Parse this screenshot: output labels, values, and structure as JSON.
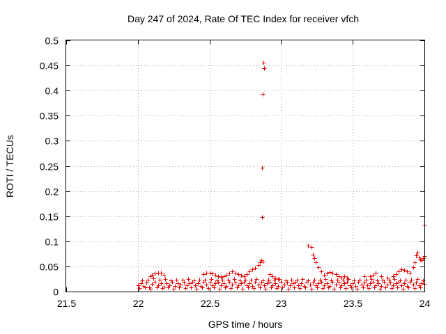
{
  "chart_data": {
    "type": "scatter",
    "title": "Day 247 of 2024, Rate Of TEC Index for receiver vfch",
    "xlabel": "GPS time / hours",
    "ylabel": "ROTI / TECUs",
    "xlim": [
      21.5,
      24
    ],
    "ylim": [
      0,
      0.5
    ],
    "grid": true,
    "xticks": [
      21.5,
      22,
      22.5,
      23,
      23.5,
      24
    ],
    "xtick_labels": [
      "21.5",
      "22",
      "22.5",
      "23",
      "23.5",
      "24"
    ],
    "yticks": [
      0,
      0.05,
      0.1,
      0.15,
      0.2,
      0.25,
      0.3,
      0.35,
      0.4,
      0.45,
      0.5
    ],
    "ytick_labels": [
      "0",
      "0.05",
      "0.1",
      "0.15",
      "0.2",
      "0.25",
      "0.3",
      "0.35",
      "0.4",
      "0.45",
      "0.5"
    ],
    "marker_color": "#e00000",
    "series": [
      {
        "name": "ROTI",
        "marker": "+",
        "points": [
          [
            22.0,
            0.013
          ],
          [
            22.02,
            0.016
          ],
          [
            22.04,
            0.011
          ],
          [
            22.06,
            0.018
          ],
          [
            22.08,
            0.009
          ],
          [
            22.1,
            0.015
          ],
          [
            22.12,
            0.02
          ],
          [
            22.14,
            0.012
          ],
          [
            22.16,
            0.017
          ],
          [
            22.18,
            0.01
          ],
          [
            22.2,
            0.016
          ],
          [
            22.22,
            0.013
          ],
          [
            22.24,
            0.019
          ],
          [
            22.26,
            0.011
          ],
          [
            22.28,
            0.017
          ],
          [
            22.3,
            0.014
          ],
          [
            22.32,
            0.018
          ],
          [
            22.34,
            0.012
          ],
          [
            22.36,
            0.016
          ],
          [
            22.38,
            0.02
          ],
          [
            22.4,
            0.013
          ],
          [
            22.42,
            0.017
          ],
          [
            22.44,
            0.011
          ],
          [
            22.46,
            0.019
          ],
          [
            22.48,
            0.014
          ],
          [
            22.5,
            0.018
          ],
          [
            22.52,
            0.012
          ],
          [
            22.54,
            0.016
          ],
          [
            22.56,
            0.02
          ],
          [
            22.58,
            0.013
          ],
          [
            22.6,
            0.017
          ],
          [
            22.62,
            0.011
          ],
          [
            22.64,
            0.019
          ],
          [
            22.66,
            0.014
          ],
          [
            22.68,
            0.018
          ],
          [
            22.7,
            0.012
          ],
          [
            22.72,
            0.016
          ],
          [
            22.74,
            0.02
          ],
          [
            22.76,
            0.013
          ],
          [
            22.78,
            0.017
          ],
          [
            22.8,
            0.011
          ],
          [
            22.82,
            0.019
          ],
          [
            22.84,
            0.014
          ],
          [
            22.86,
            0.018
          ],
          [
            22.88,
            0.012
          ],
          [
            22.9,
            0.016
          ],
          [
            22.92,
            0.02
          ],
          [
            22.94,
            0.013
          ],
          [
            22.96,
            0.017
          ],
          [
            22.98,
            0.011
          ],
          [
            23.0,
            0.019
          ],
          [
            23.02,
            0.014
          ],
          [
            23.04,
            0.018
          ],
          [
            23.06,
            0.012
          ],
          [
            23.08,
            0.016
          ],
          [
            23.1,
            0.02
          ],
          [
            23.12,
            0.013
          ],
          [
            23.14,
            0.017
          ],
          [
            23.16,
            0.011
          ],
          [
            23.18,
            0.019
          ],
          [
            23.2,
            0.014
          ],
          [
            23.22,
            0.018
          ],
          [
            23.24,
            0.012
          ],
          [
            23.26,
            0.016
          ],
          [
            23.28,
            0.02
          ],
          [
            23.3,
            0.013
          ],
          [
            23.32,
            0.017
          ],
          [
            23.34,
            0.011
          ],
          [
            23.36,
            0.019
          ],
          [
            23.38,
            0.014
          ],
          [
            23.4,
            0.018
          ],
          [
            23.42,
            0.012
          ],
          [
            23.44,
            0.016
          ],
          [
            23.46,
            0.02
          ],
          [
            23.48,
            0.013
          ],
          [
            23.5,
            0.017
          ],
          [
            23.52,
            0.011
          ],
          [
            23.54,
            0.019
          ],
          [
            23.56,
            0.014
          ],
          [
            23.58,
            0.018
          ],
          [
            23.6,
            0.012
          ],
          [
            23.62,
            0.016
          ],
          [
            23.64,
            0.02
          ],
          [
            23.66,
            0.013
          ],
          [
            23.68,
            0.017
          ],
          [
            23.7,
            0.011
          ],
          [
            23.72,
            0.019
          ],
          [
            23.74,
            0.014
          ],
          [
            23.76,
            0.018
          ],
          [
            23.78,
            0.012
          ],
          [
            23.8,
            0.016
          ],
          [
            23.82,
            0.02
          ],
          [
            23.84,
            0.013
          ],
          [
            23.86,
            0.017
          ],
          [
            23.88,
            0.011
          ],
          [
            23.9,
            0.019
          ],
          [
            23.92,
            0.014
          ],
          [
            23.94,
            0.018
          ],
          [
            23.96,
            0.012
          ],
          [
            23.98,
            0.016
          ],
          [
            24.0,
            0.015
          ],
          [
            22.01,
            0.007
          ],
          [
            22.05,
            0.009
          ],
          [
            22.09,
            0.006
          ],
          [
            22.13,
            0.008
          ],
          [
            22.17,
            0.007
          ],
          [
            22.21,
            0.009
          ],
          [
            22.25,
            0.006
          ],
          [
            22.29,
            0.008
          ],
          [
            22.33,
            0.007
          ],
          [
            22.37,
            0.009
          ],
          [
            22.41,
            0.006
          ],
          [
            22.45,
            0.008
          ],
          [
            22.49,
            0.007
          ],
          [
            22.53,
            0.009
          ],
          [
            22.57,
            0.006
          ],
          [
            22.61,
            0.008
          ],
          [
            22.65,
            0.007
          ],
          [
            22.69,
            0.009
          ],
          [
            22.73,
            0.006
          ],
          [
            22.77,
            0.008
          ],
          [
            22.81,
            0.007
          ],
          [
            22.85,
            0.009
          ],
          [
            22.89,
            0.006
          ],
          [
            22.93,
            0.008
          ],
          [
            22.97,
            0.007
          ],
          [
            23.01,
            0.009
          ],
          [
            23.05,
            0.006
          ],
          [
            23.09,
            0.008
          ],
          [
            23.13,
            0.007
          ],
          [
            23.17,
            0.009
          ],
          [
            23.21,
            0.006
          ],
          [
            23.25,
            0.008
          ],
          [
            23.29,
            0.007
          ],
          [
            23.33,
            0.009
          ],
          [
            23.37,
            0.006
          ],
          [
            23.41,
            0.008
          ],
          [
            23.45,
            0.007
          ],
          [
            23.49,
            0.009
          ],
          [
            23.53,
            0.006
          ],
          [
            23.57,
            0.008
          ],
          [
            23.61,
            0.007
          ],
          [
            23.65,
            0.009
          ],
          [
            23.69,
            0.006
          ],
          [
            23.73,
            0.008
          ],
          [
            23.77,
            0.007
          ],
          [
            23.81,
            0.009
          ],
          [
            23.85,
            0.006
          ],
          [
            23.89,
            0.008
          ],
          [
            23.93,
            0.007
          ],
          [
            23.97,
            0.009
          ],
          [
            22.03,
            0.022
          ],
          [
            22.07,
            0.024
          ],
          [
            22.11,
            0.026
          ],
          [
            22.15,
            0.023
          ],
          [
            22.19,
            0.025
          ],
          [
            22.23,
            0.022
          ],
          [
            22.27,
            0.024
          ],
          [
            22.31,
            0.023
          ],
          [
            22.35,
            0.025
          ],
          [
            22.39,
            0.022
          ],
          [
            22.43,
            0.024
          ],
          [
            22.47,
            0.023
          ],
          [
            22.51,
            0.025
          ],
          [
            22.55,
            0.022
          ],
          [
            22.59,
            0.024
          ],
          [
            22.63,
            0.023
          ],
          [
            22.67,
            0.025
          ],
          [
            22.71,
            0.022
          ],
          [
            22.75,
            0.024
          ],
          [
            22.79,
            0.023
          ],
          [
            22.83,
            0.025
          ],
          [
            22.87,
            0.022
          ],
          [
            22.91,
            0.024
          ],
          [
            22.95,
            0.023
          ],
          [
            22.99,
            0.025
          ],
          [
            23.03,
            0.022
          ],
          [
            23.07,
            0.024
          ],
          [
            23.11,
            0.023
          ],
          [
            23.15,
            0.025
          ],
          [
            23.19,
            0.022
          ],
          [
            23.23,
            0.024
          ],
          [
            23.27,
            0.023
          ],
          [
            23.31,
            0.025
          ],
          [
            23.35,
            0.022
          ],
          [
            23.39,
            0.024
          ],
          [
            23.43,
            0.023
          ],
          [
            23.47,
            0.025
          ],
          [
            23.51,
            0.022
          ],
          [
            23.55,
            0.024
          ],
          [
            23.59,
            0.023
          ],
          [
            23.63,
            0.025
          ],
          [
            23.67,
            0.022
          ],
          [
            23.71,
            0.024
          ],
          [
            23.75,
            0.023
          ],
          [
            23.79,
            0.025
          ],
          [
            23.83,
            0.022
          ],
          [
            23.87,
            0.024
          ],
          [
            23.91,
            0.023
          ],
          [
            23.95,
            0.025
          ],
          [
            23.99,
            0.022
          ],
          [
            22.09,
            0.03
          ],
          [
            22.1,
            0.033
          ],
          [
            22.12,
            0.036
          ],
          [
            22.14,
            0.038
          ],
          [
            22.16,
            0.037
          ],
          [
            22.18,
            0.033
          ],
          [
            22.46,
            0.035
          ],
          [
            22.48,
            0.038
          ],
          [
            22.5,
            0.037
          ],
          [
            22.52,
            0.036
          ],
          [
            22.54,
            0.033
          ],
          [
            22.56,
            0.031
          ],
          [
            22.58,
            0.029
          ],
          [
            22.6,
            0.031
          ],
          [
            22.62,
            0.033
          ],
          [
            22.64,
            0.036
          ],
          [
            22.66,
            0.04
          ],
          [
            22.68,
            0.037
          ],
          [
            22.7,
            0.034
          ],
          [
            22.72,
            0.032
          ],
          [
            22.74,
            0.03
          ],
          [
            22.76,
            0.035
          ],
          [
            22.78,
            0.04
          ],
          [
            22.8,
            0.044
          ],
          [
            22.82,
            0.047
          ],
          [
            22.84,
            0.052
          ],
          [
            22.85,
            0.058
          ],
          [
            22.86,
            0.062
          ],
          [
            22.87,
            0.06
          ],
          [
            22.92,
            0.034
          ],
          [
            22.94,
            0.03
          ],
          [
            22.96,
            0.027
          ],
          [
            22.98,
            0.025
          ],
          [
            23.19,
            0.092
          ],
          [
            23.21,
            0.088
          ],
          [
            23.22,
            0.074
          ],
          [
            23.23,
            0.066
          ],
          [
            23.24,
            0.058
          ],
          [
            23.26,
            0.048
          ],
          [
            23.28,
            0.04
          ],
          [
            23.3,
            0.033
          ],
          [
            23.32,
            0.036
          ],
          [
            23.34,
            0.039
          ],
          [
            23.36,
            0.038
          ],
          [
            23.38,
            0.035
          ],
          [
            23.4,
            0.031
          ],
          [
            23.42,
            0.028
          ],
          [
            23.44,
            0.031
          ],
          [
            23.46,
            0.028
          ],
          [
            23.58,
            0.03
          ],
          [
            23.62,
            0.031
          ],
          [
            23.64,
            0.033
          ],
          [
            23.66,
            0.037
          ],
          [
            23.7,
            0.03
          ],
          [
            23.74,
            0.028
          ],
          [
            23.78,
            0.031
          ],
          [
            23.8,
            0.034
          ],
          [
            23.82,
            0.04
          ],
          [
            23.84,
            0.045
          ],
          [
            23.86,
            0.043
          ],
          [
            23.88,
            0.04
          ],
          [
            23.9,
            0.037
          ],
          [
            23.92,
            0.048
          ],
          [
            23.93,
            0.058
          ],
          [
            23.94,
            0.072
          ],
          [
            23.95,
            0.077
          ],
          [
            23.96,
            0.068
          ],
          [
            23.97,
            0.064
          ],
          [
            23.98,
            0.063
          ],
          [
            23.99,
            0.067
          ],
          [
            24.0,
            0.07
          ],
          [
            22.865,
            0.148
          ],
          [
            22.868,
            0.246
          ],
          [
            22.872,
            0.393
          ],
          [
            22.878,
            0.456
          ],
          [
            22.882,
            0.445
          ],
          [
            24.0,
            0.133
          ]
        ]
      }
    ]
  }
}
